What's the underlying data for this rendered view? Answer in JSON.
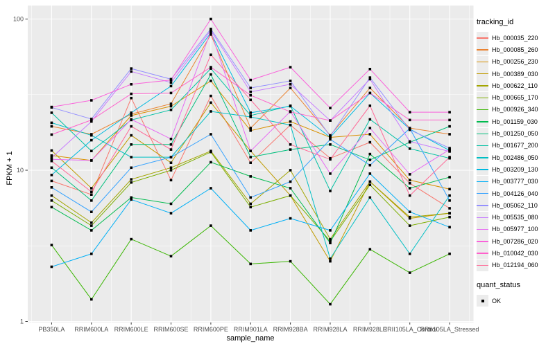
{
  "chart_data": {
    "type": "line",
    "xlabel": "sample_name",
    "ylabel": "FPKM + 1",
    "y_scale": "log10",
    "y_ticks": [
      1,
      10,
      100
    ],
    "ylim": [
      1,
      110
    ],
    "grid": "white major and minor on gray panel",
    "panel_bg": "#EBEBEB",
    "point_shape": "filled-black-square",
    "legend_position": "right",
    "categories": [
      "PB350LA",
      "RRIM600LA",
      "RRIM600LE",
      "RRIM600SE",
      "RRIM600PE",
      "RRIM901LA",
      "RRIM928BA",
      "RRIM928LA",
      "RRIM928LE",
      "RRII105LA_Control",
      "RRII105LA_Stressed"
    ],
    "series": [
      {
        "name": "Hb_000035_220",
        "color": "#F8766D",
        "values": [
          8.5,
          6.9,
          30.0,
          8.6,
          31.0,
          11.2,
          19.9,
          12.0,
          15.3,
          8.2,
          5.6
        ]
      },
      {
        "name": "Hb_000085_260",
        "color": "#EA8331",
        "values": [
          19.5,
          17.3,
          23.5,
          27.5,
          79.0,
          19.0,
          35.0,
          17.0,
          35.0,
          19.0,
          17.3
        ]
      },
      {
        "name": "Hb_000256_230",
        "color": "#D89000",
        "values": [
          12.5,
          11.6,
          23.0,
          26.5,
          39.0,
          18.3,
          21.0,
          16.5,
          17.3,
          8.6,
          7.5
        ]
      },
      {
        "name": "Hb_000389_030",
        "color": "#C09B00",
        "values": [
          13.5,
          7.6,
          17.0,
          11.2,
          28.0,
          13.4,
          6.8,
          2.5,
          8.4,
          4.8,
          5.2
        ]
      },
      {
        "name": "Hb_000622_110",
        "color": "#A3A500",
        "values": [
          6.8,
          4.5,
          8.7,
          10.4,
          13.4,
          6.0,
          10.0,
          3.5,
          8.4,
          4.9,
          5.2
        ]
      },
      {
        "name": "Hb_000665_170",
        "color": "#7CAE00",
        "values": [
          6.3,
          4.3,
          8.3,
          10.0,
          13.2,
          5.7,
          6.8,
          3.4,
          8.0,
          4.3,
          4.9
        ]
      },
      {
        "name": "Hb_000926_340",
        "color": "#39B600",
        "values": [
          3.2,
          1.4,
          3.5,
          2.7,
          4.3,
          2.4,
          2.5,
          1.3,
          3.0,
          2.1,
          2.8
        ]
      },
      {
        "name": "Hb_001159_030",
        "color": "#00BB4E",
        "values": [
          5.7,
          4.0,
          6.6,
          6.0,
          11.3,
          9.1,
          7.6,
          3.3,
          12.8,
          7.6,
          9.0
        ]
      },
      {
        "name": "Hb_001250_050",
        "color": "#00BF7D",
        "values": [
          10.4,
          6.3,
          14.8,
          14.8,
          43.0,
          12.2,
          13.7,
          14.8,
          11.7,
          15.3,
          19.5
        ]
      },
      {
        "name": "Hb_001677_200",
        "color": "#00C1A3",
        "values": [
          24.0,
          13.4,
          21.5,
          25.1,
          47.0,
          23.0,
          26.7,
          7.3,
          21.7,
          13.9,
          12.0
        ]
      },
      {
        "name": "Hb_002486_050",
        "color": "#00BFC4",
        "values": [
          20.6,
          17.0,
          12.2,
          12.2,
          24.5,
          22.5,
          19.9,
          2.6,
          6.6,
          2.8,
          6.8
        ]
      },
      {
        "name": "Hb_003209_130",
        "color": "#00BAE0",
        "values": [
          9.3,
          15.8,
          24.0,
          36.0,
          81.0,
          24.0,
          26.5,
          16.5,
          32.4,
          18.7,
          13.5
        ]
      },
      {
        "name": "Hb_003777_030",
        "color": "#00B0F6",
        "values": [
          2.3,
          2.8,
          6.4,
          5.2,
          7.6,
          4.0,
          4.8,
          4.0,
          9.5,
          5.3,
          4.2
        ]
      },
      {
        "name": "Hb_004126_040",
        "color": "#35A2FF",
        "values": [
          7.7,
          5.3,
          10.4,
          12.2,
          17.3,
          6.6,
          8.4,
          16.0,
          10.8,
          18.9,
          6.3
        ]
      },
      {
        "name": "Hb_005062_110",
        "color": "#9590FF",
        "values": [
          26.0,
          21.8,
          47.0,
          40.0,
          86.0,
          35.0,
          39.0,
          16.8,
          41.0,
          18.5,
          14.0
        ]
      },
      {
        "name": "Hb_005535_080",
        "color": "#C77CFF",
        "values": [
          12.1,
          21.0,
          45.0,
          38.0,
          84.0,
          33.0,
          37.0,
          21.3,
          40.0,
          15.5,
          13.3
        ]
      },
      {
        "name": "Hb_005977_100",
        "color": "#E76BF3",
        "values": [
          11.8,
          11.6,
          21.7,
          16.1,
          83.0,
          13.4,
          24.5,
          9.5,
          19.0,
          9.4,
          13.7
        ]
      },
      {
        "name": "Hb_007286_020",
        "color": "#FA62DB",
        "values": [
          26.2,
          29.0,
          37.0,
          39.5,
          100.0,
          39.5,
          48.0,
          25.8,
          46.7,
          24.2,
          24.2
        ]
      },
      {
        "name": "Hb_010042_030",
        "color": "#FF61CC",
        "values": [
          17.2,
          21.5,
          32.0,
          32.4,
          48.0,
          31.3,
          24.3,
          21.3,
          32.4,
          21.5,
          21.5
        ]
      },
      {
        "name": "Hb_012194_060",
        "color": "#FF6A98",
        "values": [
          11.5,
          7.2,
          19.5,
          13.7,
          58.0,
          29.2,
          14.8,
          11.8,
          26.7,
          6.8,
          12.2
        ]
      }
    ]
  },
  "legend": {
    "tracking_title": "tracking_id",
    "quant_title": "quant_status",
    "quant_items": [
      {
        "label": "OK"
      }
    ]
  },
  "axis": {
    "y_tick_labels": [
      "100",
      "10",
      "1"
    ],
    "tick_color": "#333333",
    "tick_label_color": "#4D4D4D"
  }
}
